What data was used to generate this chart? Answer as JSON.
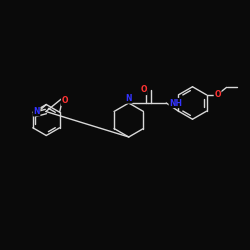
{
  "background_color": "#0a0a0a",
  "bond_color": "#d8d8d8",
  "atom_colors": {
    "N": "#3333ff",
    "O": "#ff3333",
    "C": "#d8d8d8"
  },
  "figsize": [
    2.5,
    2.5
  ],
  "dpi": 100
}
